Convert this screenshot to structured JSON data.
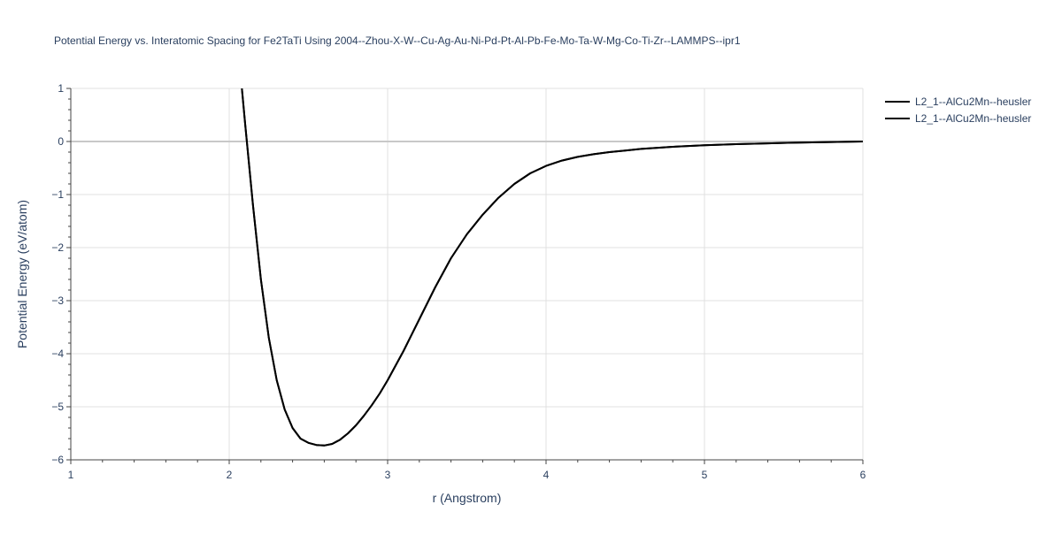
{
  "chart_data": {
    "type": "line",
    "title": "Potential Energy vs. Interatomic Spacing for Fe2TaTi Using 2004--Zhou-X-W--Cu-Ag-Au-Ni-Pd-Pt-Al-Pb-Fe-Mo-Ta-W-Mg-Co-Ti-Zr--LAMMPS--ipr1",
    "xlabel": "r (Angstrom)",
    "ylabel": "Potential Energy (eV/atom)",
    "xlim": [
      1,
      6
    ],
    "ylim": [
      -6,
      1
    ],
    "x_ticks": [
      1,
      2,
      3,
      4,
      5,
      6
    ],
    "x_tick_labels": [
      "1",
      "2",
      "3",
      "4",
      "5",
      "6"
    ],
    "y_ticks": [
      1,
      0,
      -1,
      -2,
      -3,
      -4,
      -5,
      -6
    ],
    "y_tick_labels": [
      "1",
      "0",
      "−1",
      "−2",
      "−3",
      "−4",
      "−5",
      "−6"
    ],
    "grid": true,
    "legend_position": "top-right",
    "series": [
      {
        "name": "L2_1--AlCu2Mn--heusler",
        "color": "#000000",
        "x": [
          2.08,
          2.1,
          2.15,
          2.2,
          2.25,
          2.3,
          2.35,
          2.4,
          2.45,
          2.5,
          2.55,
          2.6,
          2.65,
          2.7,
          2.75,
          2.8,
          2.85,
          2.9,
          2.95,
          3.0,
          3.1,
          3.2,
          3.3,
          3.4,
          3.5,
          3.6,
          3.7,
          3.8,
          3.9,
          4.0,
          4.1,
          4.2,
          4.3,
          4.4,
          4.5,
          4.6,
          4.8,
          5.0,
          5.2,
          5.4,
          5.6,
          5.8,
          6.0
        ],
        "y": [
          1.0,
          0.35,
          -1.2,
          -2.6,
          -3.7,
          -4.5,
          -5.05,
          -5.4,
          -5.6,
          -5.68,
          -5.72,
          -5.73,
          -5.7,
          -5.62,
          -5.5,
          -5.35,
          -5.17,
          -4.97,
          -4.75,
          -4.5,
          -3.95,
          -3.35,
          -2.75,
          -2.2,
          -1.75,
          -1.38,
          -1.06,
          -0.8,
          -0.6,
          -0.46,
          -0.36,
          -0.29,
          -0.24,
          -0.2,
          -0.17,
          -0.14,
          -0.1,
          -0.07,
          -0.05,
          -0.035,
          -0.02,
          -0.01,
          0.0
        ]
      },
      {
        "name": "L2_1--AlCu2Mn--heusler",
        "color": "#000000",
        "x": [
          2.08,
          2.1,
          2.15,
          2.2,
          2.25,
          2.3,
          2.35,
          2.4,
          2.45,
          2.5,
          2.55,
          2.6,
          2.65,
          2.7,
          2.75,
          2.8,
          2.85,
          2.9,
          2.95,
          3.0,
          3.1,
          3.2,
          3.3,
          3.4,
          3.5,
          3.6,
          3.7,
          3.8,
          3.9,
          4.0,
          4.1,
          4.2,
          4.3,
          4.4,
          4.5,
          4.6,
          4.8,
          5.0,
          5.2,
          5.4,
          5.6,
          5.8,
          6.0
        ],
        "y": [
          1.0,
          0.35,
          -1.2,
          -2.6,
          -3.7,
          -4.5,
          -5.05,
          -5.4,
          -5.6,
          -5.68,
          -5.72,
          -5.73,
          -5.7,
          -5.62,
          -5.5,
          -5.35,
          -5.17,
          -4.97,
          -4.75,
          -4.5,
          -3.95,
          -3.35,
          -2.75,
          -2.2,
          -1.75,
          -1.38,
          -1.06,
          -0.8,
          -0.6,
          -0.46,
          -0.36,
          -0.29,
          -0.24,
          -0.2,
          -0.17,
          -0.14,
          -0.1,
          -0.07,
          -0.05,
          -0.035,
          -0.02,
          -0.01,
          0.0
        ]
      }
    ]
  }
}
